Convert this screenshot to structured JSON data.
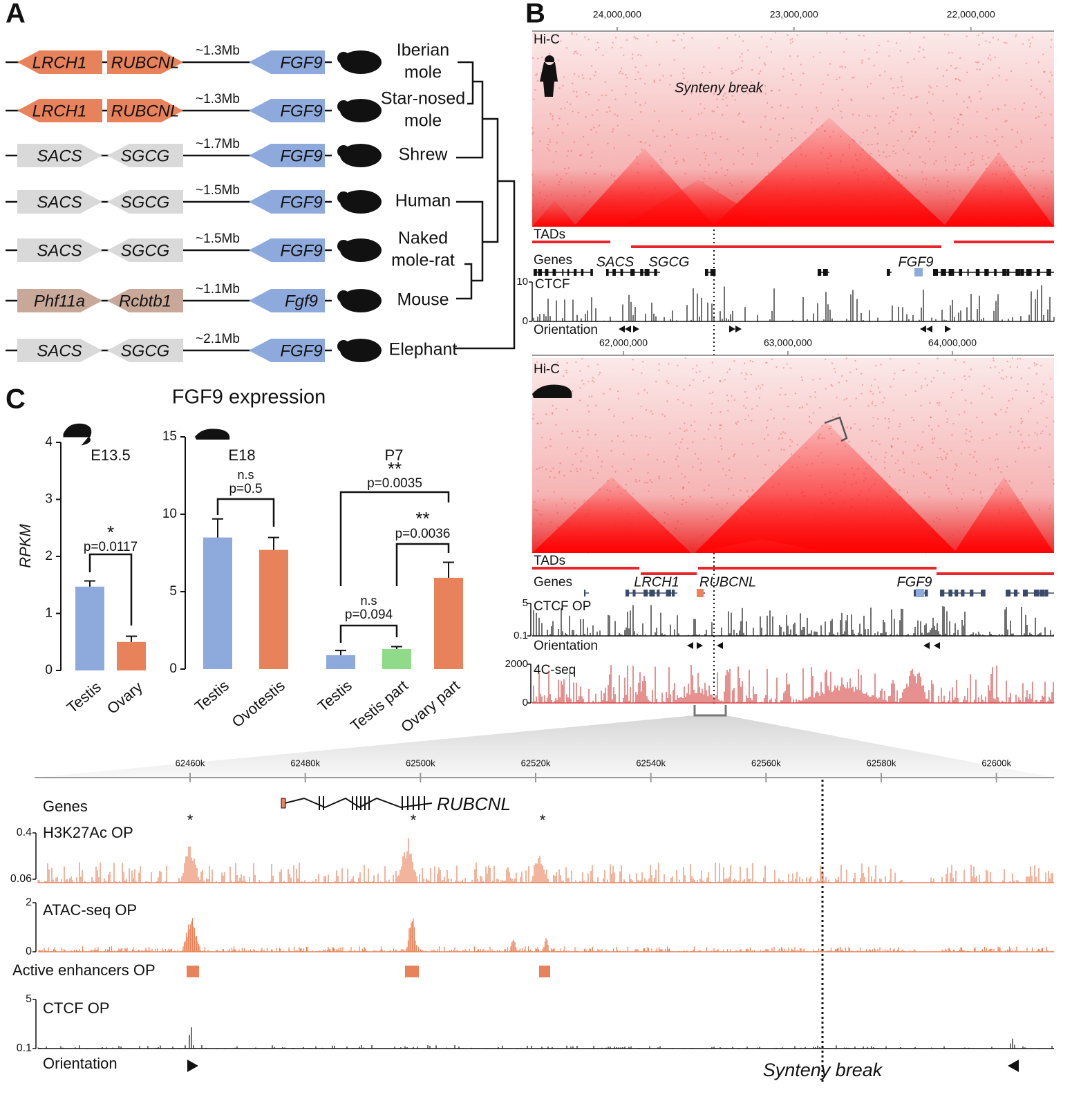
{
  "panel_labels": [
    "A",
    "B",
    "C"
  ],
  "panel_a": {
    "rows": [
      {
        "gene1": "LRCH1",
        "gene2": "RUBCNL",
        "distance": "~1.3Mb",
        "target": "FGF9",
        "species": [
          "Iberian",
          "mole"
        ],
        "color": "#e8825a",
        "orientation": [
          "left",
          "right"
        ]
      },
      {
        "gene1": "LRCH1",
        "gene2": "RUBCNL",
        "distance": "~1.3Mb",
        "target": "FGF9",
        "species": [
          "Star-nosed",
          "mole"
        ],
        "color": "#e8825a",
        "orientation": [
          "left",
          "right"
        ]
      },
      {
        "gene1": "SACS",
        "gene2": "SGCG",
        "distance": "~1.7Mb",
        "target": "FGF9",
        "species": [
          "Shrew"
        ],
        "color": "#d9d9d9",
        "orientation": [
          "right",
          "left"
        ]
      },
      {
        "gene1": "SACS",
        "gene2": "SGCG",
        "distance": "~1.5Mb",
        "target": "FGF9",
        "species": [
          "Human"
        ],
        "color": "#d9d9d9",
        "orientation": [
          "right",
          "left"
        ]
      },
      {
        "gene1": "SACS",
        "gene2": "SGCG",
        "distance": "~1.5Mb",
        "target": "FGF9",
        "species": [
          "Naked",
          "mole-rat"
        ],
        "color": "#d9d9d9",
        "orientation": [
          "right",
          "left"
        ]
      },
      {
        "gene1": "Phf11a",
        "gene2": "Rcbtb1",
        "distance": "~1.1Mb",
        "target": "Fgf9",
        "species": [
          "Mouse"
        ],
        "color": "#c8a898",
        "orientation": [
          "right",
          "left"
        ]
      },
      {
        "gene1": "SACS",
        "gene2": "SGCG",
        "distance": "~2.1Mb",
        "target": "FGF9",
        "species": [
          "Elephant"
        ],
        "color": "#d9d9d9",
        "orientation": [
          "right",
          "left"
        ]
      }
    ],
    "target_color": "#8eaadc"
  },
  "panel_b": {
    "top": {
      "xlim": [
        24480000,
        21530000
      ],
      "xticks": [
        {
          "value": 24000000,
          "label": "24,000,000"
        },
        {
          "value": 23000000,
          "label": "23,000,000"
        },
        {
          "value": 22000000,
          "label": "22,000,000"
        }
      ],
      "hic_label": "Hi-C",
      "synteny_label": "Synteny break",
      "tads_label": "TADs",
      "genes_label": "Genes",
      "genes": [
        "SACS",
        "SGCG",
        "FGF9"
      ],
      "ctcf_label": "CTCF",
      "ctcf_ticks": [
        0,
        10
      ],
      "orientation_label": "Orientation"
    },
    "bottom": {
      "xlim": [
        61445000,
        64618000
      ],
      "xticks": [
        {
          "value": 62000000,
          "label": "62,000,000"
        },
        {
          "value": 63000000,
          "label": "63,000,000"
        },
        {
          "value": 64000000,
          "label": "64,000,000"
        }
      ],
      "hic_label": "Hi-C",
      "tads_label": "TADs",
      "genes_label": "Genes",
      "genes": [
        "LRCH1",
        "RUBCNL",
        "FGF9"
      ],
      "ctcf_label": "CTCF OP",
      "ctcf_ticks": [
        0.1,
        5
      ],
      "orientation_label": "Orientation",
      "fourc_label": "4C-seq",
      "fourc_ticks": [
        0,
        2000
      ]
    }
  },
  "zoom": {
    "xlim": [
      62433,
      62610
    ],
    "xticks": [
      {
        "value": 62460,
        "label": "62460k"
      },
      {
        "value": 62480,
        "label": "62480k"
      },
      {
        "value": 62500,
        "label": "62500k"
      },
      {
        "value": 62520,
        "label": "62520k"
      },
      {
        "value": 62540,
        "label": "62540k"
      },
      {
        "value": 62560,
        "label": "62560k"
      },
      {
        "value": 62580,
        "label": "62580k"
      },
      {
        "value": 62600,
        "label": "62600k"
      }
    ],
    "genes_label": "Genes",
    "gene": "RUBCNL",
    "peak_marks": [
      "*",
      "*",
      "*"
    ],
    "h3k27ac_label": "H3K27Ac OP",
    "h3k27ac_ticks": [
      0.06,
      0.4
    ],
    "atac_label": "ATAC-seq OP",
    "atac_ticks": [
      0,
      2
    ],
    "enhancers_label": "Active enhancers OP",
    "ctcf_label": "CTCF OP",
    "ctcf_ticks": [
      0.1,
      5
    ],
    "orientation_label": "Orientation",
    "synteny_label": "Synteny break"
  },
  "chart_data": [
    {
      "type": "bar",
      "title": "FGF9 expression",
      "y_label": "RPKM",
      "group_labels": [
        "E13.5"
      ],
      "categories": [
        "Testis",
        "Ovary"
      ],
      "values": [
        1.47,
        0.5
      ],
      "errors": [
        0.1,
        0.1
      ],
      "colors": [
        "#8eaadc",
        "#e8825a"
      ],
      "ylim": [
        0,
        4
      ],
      "yticks": [
        0,
        1,
        2,
        3,
        4
      ],
      "annotations": [
        {
          "stars": "*",
          "p": "p=0.0117"
        }
      ]
    },
    {
      "type": "bar",
      "group_labels": [
        "E18",
        "P7"
      ],
      "categories": [
        "Testis",
        "Ovotestis",
        "Testis",
        "Testis part",
        "Ovary part"
      ],
      "values": [
        8.5,
        7.7,
        0.9,
        1.3,
        5.9
      ],
      "errors": [
        1.2,
        0.8,
        0.3,
        0.15,
        1.0
      ],
      "colors": [
        "#8eaadc",
        "#e8825a",
        "#8eaadc",
        "#8fdb8a",
        "#e8825a"
      ],
      "ylim": [
        0,
        15
      ],
      "yticks": [
        0,
        5,
        10,
        15
      ],
      "annotations": [
        {
          "stars": "n.s",
          "p": "p=0.5"
        },
        {
          "stars": "**",
          "p": "p=0.0035"
        },
        {
          "stars": "**",
          "p": "p=0.0036"
        },
        {
          "stars": "n.s",
          "p": "p=0.094"
        }
      ]
    }
  ]
}
